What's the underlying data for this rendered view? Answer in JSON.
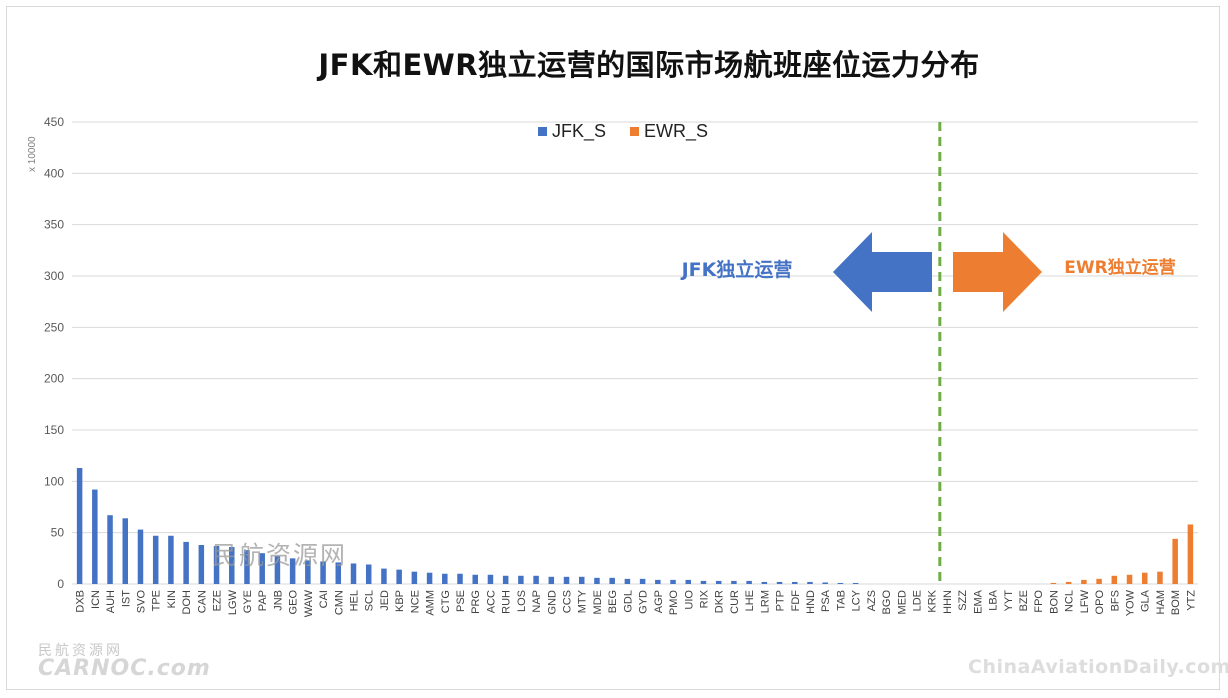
{
  "title": "JFK和EWR独立运营的国际市场航班座位运力分布",
  "colors": {
    "jfk": "#4472c4",
    "ewr": "#ed7d31",
    "divider": "#70ad47",
    "grid": "#d9d9d9"
  },
  "chart_data": {
    "type": "bar",
    "title": "JFK和EWR独立运营的国际市场航班座位运力分布",
    "y_unit_label": "x 10000",
    "ylim": [
      0,
      450
    ],
    "yticks": [
      0,
      50,
      100,
      150,
      200,
      250,
      300,
      350,
      400,
      450
    ],
    "grid": true,
    "legend_position": "top",
    "annotations": {
      "jfk_label": "JFK独立运营",
      "ewr_label": "EWR独立运营"
    },
    "categories": [
      "DXB",
      "ICN",
      "AUH",
      "IST",
      "SVO",
      "TPE",
      "KIN",
      "DOH",
      "CAN",
      "EZE",
      "LGW",
      "GYE",
      "PAP",
      "JNB",
      "GEO",
      "WAW",
      "CAI",
      "CMN",
      "HEL",
      "SCL",
      "JED",
      "KBP",
      "NCE",
      "AMM",
      "CTG",
      "PSE",
      "PRG",
      "ACC",
      "RUH",
      "LOS",
      "NAP",
      "GND",
      "CCS",
      "MTY",
      "MDE",
      "BEG",
      "GDL",
      "GYD",
      "AGP",
      "PMO",
      "UIO",
      "RIX",
      "DKR",
      "CUR",
      "LHE",
      "LRM",
      "PTP",
      "FDF",
      "HND",
      "PSA",
      "TAB",
      "LCY",
      "AZS",
      "BGO",
      "MED",
      "LDE",
      "KRK",
      "HHN",
      "SZZ",
      "EMA",
      "LBA",
      "YYT",
      "BZE",
      "FPO",
      "BON",
      "NCL",
      "LFW",
      "OPO",
      "BFS",
      "YOW",
      "GLA",
      "HAM",
      "BOM",
      "YTZ"
    ],
    "series": [
      {
        "name": "JFK_S",
        "color": "#4472c4",
        "values": [
          113,
          92,
          67,
          64,
          53,
          47,
          47,
          41,
          38,
          37,
          36,
          33,
          30,
          27,
          25,
          23,
          22,
          21,
          20,
          19,
          15,
          14,
          12,
          11,
          10,
          10,
          9,
          9,
          8,
          8,
          8,
          7,
          7,
          7,
          6,
          6,
          5,
          5,
          4,
          4,
          4,
          3,
          3,
          3,
          3,
          2,
          2,
          2,
          2,
          1.5,
          1,
          1,
          0,
          0,
          0,
          0,
          0,
          0,
          0,
          0,
          0,
          0,
          0,
          0,
          0,
          0,
          0,
          0,
          0,
          0,
          0,
          0,
          0,
          0
        ]
      },
      {
        "name": "EWR_S",
        "color": "#ed7d31",
        "values": [
          0,
          0,
          0,
          0,
          0,
          0,
          0,
          0,
          0,
          0,
          0,
          0,
          0,
          0,
          0,
          0,
          0,
          0,
          0,
          0,
          0,
          0,
          0,
          0,
          0,
          0,
          0,
          0,
          0,
          0,
          0,
          0,
          0,
          0,
          0,
          0,
          0,
          0,
          0,
          0,
          0,
          0,
          0,
          0,
          0,
          0,
          0,
          0,
          0,
          0,
          0,
          0,
          0,
          0,
          0,
          0,
          0,
          0,
          0,
          0,
          0,
          0,
          0,
          0,
          1,
          2,
          4,
          5,
          8,
          9,
          11,
          12,
          44,
          58
        ]
      }
    ]
  },
  "watermarks": {
    "center": "民航资源网",
    "logo_cn": "民航资源网",
    "logo_en": "CARNOC.com",
    "right": "ChinaAviationDaily.com"
  }
}
